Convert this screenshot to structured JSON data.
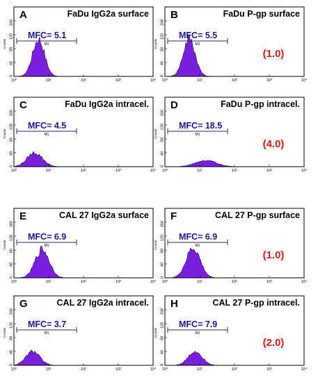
{
  "chart_data": [
    {
      "type": "histogram",
      "panel": "A",
      "title": "FaDu IgG2a surface",
      "mfc_label": "MFC= 5.1",
      "mfc": 5.1,
      "marker_label": "M1",
      "ratio_label": "",
      "xscale": "log",
      "xlim": [
        1,
        10000
      ],
      "xticks": [
        "10⁰",
        "10¹",
        "10²",
        "10³",
        "10⁴"
      ],
      "ylabel": "Counts",
      "ylim": [
        0,
        200
      ],
      "yticks": [
        "0",
        "40",
        "80",
        "120",
        "160"
      ],
      "peak": {
        "center": 5.1,
        "height": 108,
        "width": 0.17
      }
    },
    {
      "type": "histogram",
      "panel": "B",
      "title": "FaDu P-gp surface",
      "mfc_label": "MFC= 5.5",
      "mfc": 5.5,
      "marker_label": "M1",
      "ratio_label": "(1.0)",
      "xscale": "log",
      "xlim": [
        1,
        10000
      ],
      "xticks": [
        "10⁰",
        "10¹",
        "10²",
        "10³",
        "10⁴"
      ],
      "ylabel": "Counts",
      "ylim": [
        0,
        200
      ],
      "yticks": [
        "0",
        "40",
        "80",
        "120",
        "160"
      ],
      "peak": {
        "center": 5.0,
        "height": 110,
        "width": 0.17
      }
    },
    {
      "type": "histogram",
      "panel": "C",
      "title": "FaDu IgG2a intracel.",
      "mfc_label": "MFC= 4.5",
      "mfc": 4.5,
      "marker_label": "M1",
      "ratio_label": "",
      "xscale": "log",
      "xlim": [
        1,
        10000
      ],
      "xticks": [
        "10⁰",
        "10¹",
        "10²",
        "10³",
        "10⁴"
      ],
      "ylabel": "Counts",
      "ylim": [
        0,
        200
      ],
      "yticks": [
        "0",
        "40",
        "80",
        "120",
        "160"
      ],
      "peak": {
        "center": 4.0,
        "height": 40,
        "width": 0.22
      }
    },
    {
      "type": "histogram",
      "panel": "D",
      "title": "FaDu P-gp intracel.",
      "mfc_label": "MFC= 18.5",
      "mfc": 18.5,
      "marker_label": "M1",
      "ratio_label": "(4.0)",
      "xscale": "log",
      "xlim": [
        1,
        10000
      ],
      "xticks": [
        "10⁰",
        "10¹",
        "10²",
        "10³",
        "10⁴"
      ],
      "ylabel": "Counts",
      "ylim": [
        0,
        200
      ],
      "yticks": [
        "0",
        "40",
        "80",
        "120",
        "160"
      ],
      "peak": {
        "center": 15.0,
        "height": 18,
        "width": 0.3
      }
    },
    {
      "type": "histogram",
      "panel": "E",
      "title": "CAL 27 IgG2a surface",
      "mfc_label": "MFC= 6.9",
      "mfc": 6.9,
      "marker_label": "M1",
      "ratio_label": "",
      "xscale": "log",
      "xlim": [
        1,
        10000
      ],
      "xticks": [
        "10⁰",
        "10¹",
        "10²",
        "10³",
        "10⁴"
      ],
      "ylabel": "Counts",
      "ylim": [
        0,
        200
      ],
      "yticks": [
        "0",
        "40",
        "80",
        "120",
        "160"
      ],
      "peak": {
        "center": 6.5,
        "height": 82,
        "width": 0.2
      }
    },
    {
      "type": "histogram",
      "panel": "F",
      "title": "CAL 27 P-gp surface",
      "mfc_label": "MFC= 6.9",
      "mfc": 6.9,
      "marker_label": "M1",
      "ratio_label": "(1.0)",
      "xscale": "log",
      "xlim": [
        1,
        10000
      ],
      "xticks": [
        "10⁰",
        "10¹",
        "10²",
        "10³",
        "10⁴"
      ],
      "ylabel": "Counts",
      "ylim": [
        0,
        200
      ],
      "yticks": [
        "0",
        "40",
        "80",
        "120",
        "160"
      ],
      "peak": {
        "center": 6.5,
        "height": 85,
        "width": 0.2
      }
    },
    {
      "type": "histogram",
      "panel": "G",
      "title": "CAL 27 IgG2a intracel.",
      "mfc_label": "MFC= 3.7",
      "mfc": 3.7,
      "marker_label": "M1",
      "ratio_label": "",
      "xscale": "log",
      "xlim": [
        1,
        10000
      ],
      "xticks": [
        "10⁰",
        "10¹",
        "10²",
        "10³",
        "10⁴"
      ],
      "ylabel": "Counts",
      "ylim": [
        0,
        200
      ],
      "yticks": [
        "0",
        "40",
        "80",
        "120",
        "160"
      ],
      "peak": {
        "center": 3.5,
        "height": 40,
        "width": 0.2
      }
    },
    {
      "type": "histogram",
      "panel": "H",
      "title": "CAL 27 P-gp intracel.",
      "mfc_label": "MFC= 7.9",
      "mfc": 7.9,
      "marker_label": "M1",
      "ratio_label": "(2.0)",
      "xscale": "log",
      "xlim": [
        1,
        10000
      ],
      "xticks": [
        "10⁰",
        "10¹",
        "10²",
        "10³",
        "10⁴"
      ],
      "ylabel": "Counts",
      "ylim": [
        0,
        200
      ],
      "yticks": [
        "0",
        "40",
        "80",
        "120",
        "160"
      ],
      "peak": {
        "center": 7.5,
        "height": 40,
        "width": 0.2
      }
    }
  ],
  "colors": {
    "fill": "#7a1ee0",
    "outline": "#1a0b33",
    "mfc_text": "#1a1a8c",
    "ratio_text": "#d41a1a",
    "frame": "#000000",
    "marker": "#2a2a7a"
  }
}
